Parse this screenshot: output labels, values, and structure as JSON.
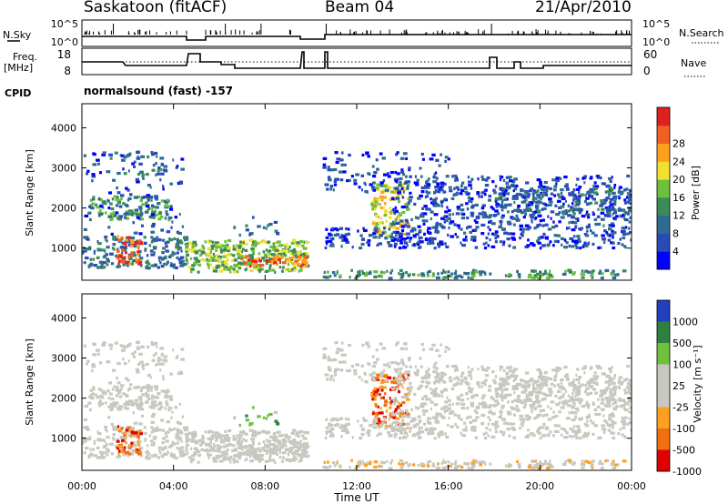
{
  "header": {
    "station": "Saskatoon (fitACF)",
    "beam": "Beam 04",
    "date": "21/Apr/2010"
  },
  "panels": {
    "nsky": {
      "left_label": "N.Sky",
      "left_ticks": [
        "10^5",
        "10^0"
      ],
      "right_label": "N.Search",
      "right_ticks": [
        "10^5",
        "10^0"
      ]
    },
    "freq": {
      "left_label_1": "Freq.",
      "left_label_2": "[MHz]",
      "left_ticks": [
        "18",
        "8"
      ],
      "right_label": "Nave",
      "right_ticks": [
        "60",
        "0"
      ]
    },
    "cpid": {
      "label": "CPID",
      "value": "normalsound (fast) -157"
    }
  },
  "colors": {
    "power_scale": [
      "#0000ff",
      "#2a4ab8",
      "#2e6b92",
      "#3a8a5a",
      "#6cc03c",
      "#f0e030",
      "#ffa020",
      "#f06020",
      "#e02020"
    ],
    "velocity_scale": [
      "#2040c0",
      "#2e8040",
      "#70c040",
      "#c8c8c0",
      "#c8c8c0",
      "#ffa020",
      "#f07010",
      "#e00000"
    ]
  },
  "chart_data": [
    {
      "type": "heatmap",
      "name": "power",
      "ylabel": "Slant Range [km]",
      "yticks": [
        "1000",
        "2000",
        "3000",
        "4000"
      ],
      "ylim": [
        200,
        4600
      ],
      "xlim": [
        0,
        24
      ],
      "xticks": [
        "00:00",
        "04:00",
        "08:00",
        "12:00",
        "16:00",
        "20:00",
        "00:00"
      ],
      "colorbar_label": "Power [dB]",
      "colorbar_ticks": [
        "4",
        "8",
        "12",
        "16",
        "20",
        "24",
        "28"
      ],
      "echo_regions": [
        {
          "t": [
            0.0,
            4.5
          ],
          "r": [
            400,
            3300
          ],
          "level": "mixed"
        },
        {
          "t": [
            4.5,
            9.8
          ],
          "r": [
            400,
            1200
          ],
          "level": "high"
        },
        {
          "t": [
            10.4,
            24.0
          ],
          "r": [
            300,
            3400
          ],
          "level": "mixed"
        }
      ]
    },
    {
      "type": "heatmap",
      "name": "velocity",
      "ylabel": "Slant Range [km]",
      "yticks": [
        "1000",
        "2000",
        "3000",
        "4000"
      ],
      "ylim": [
        200,
        4600
      ],
      "xlim": [
        0,
        24
      ],
      "xticks": [
        "00:00",
        "04:00",
        "08:00",
        "12:00",
        "16:00",
        "20:00",
        "00:00"
      ],
      "xlabel": "Time UT",
      "colorbar_label": "Velocity [m s⁻¹]",
      "colorbar_ticks": [
        "1000",
        "500",
        "100",
        "25",
        "-25",
        "-100",
        "-500",
        "-1000"
      ]
    }
  ]
}
